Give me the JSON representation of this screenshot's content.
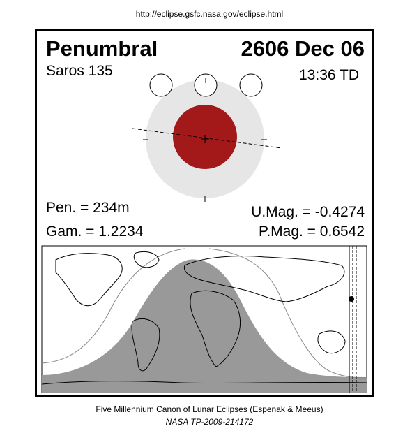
{
  "header": {
    "url": "http://eclipse.gsfc.nasa.gov/eclipse.html"
  },
  "eclipse": {
    "type": "Penumbral",
    "date": "2606 Dec 06",
    "saros": "Saros 135",
    "time": "13:36 TD",
    "pen": "Pen. = 234m",
    "gam": "Gam. = 1.2234",
    "umag": "U.Mag. = -0.4274",
    "pmag": "P.Mag. = 0.6542"
  },
  "colors": {
    "umbra": "#a31919",
    "penumbra": "#e6e6e6",
    "night_region": "#999999",
    "frame": "#000000"
  },
  "footer": {
    "line1": "Five Millennium Canon of Lunar Eclipses (Espenak & Meeus)",
    "line2": "NASA TP-2009-214172"
  }
}
